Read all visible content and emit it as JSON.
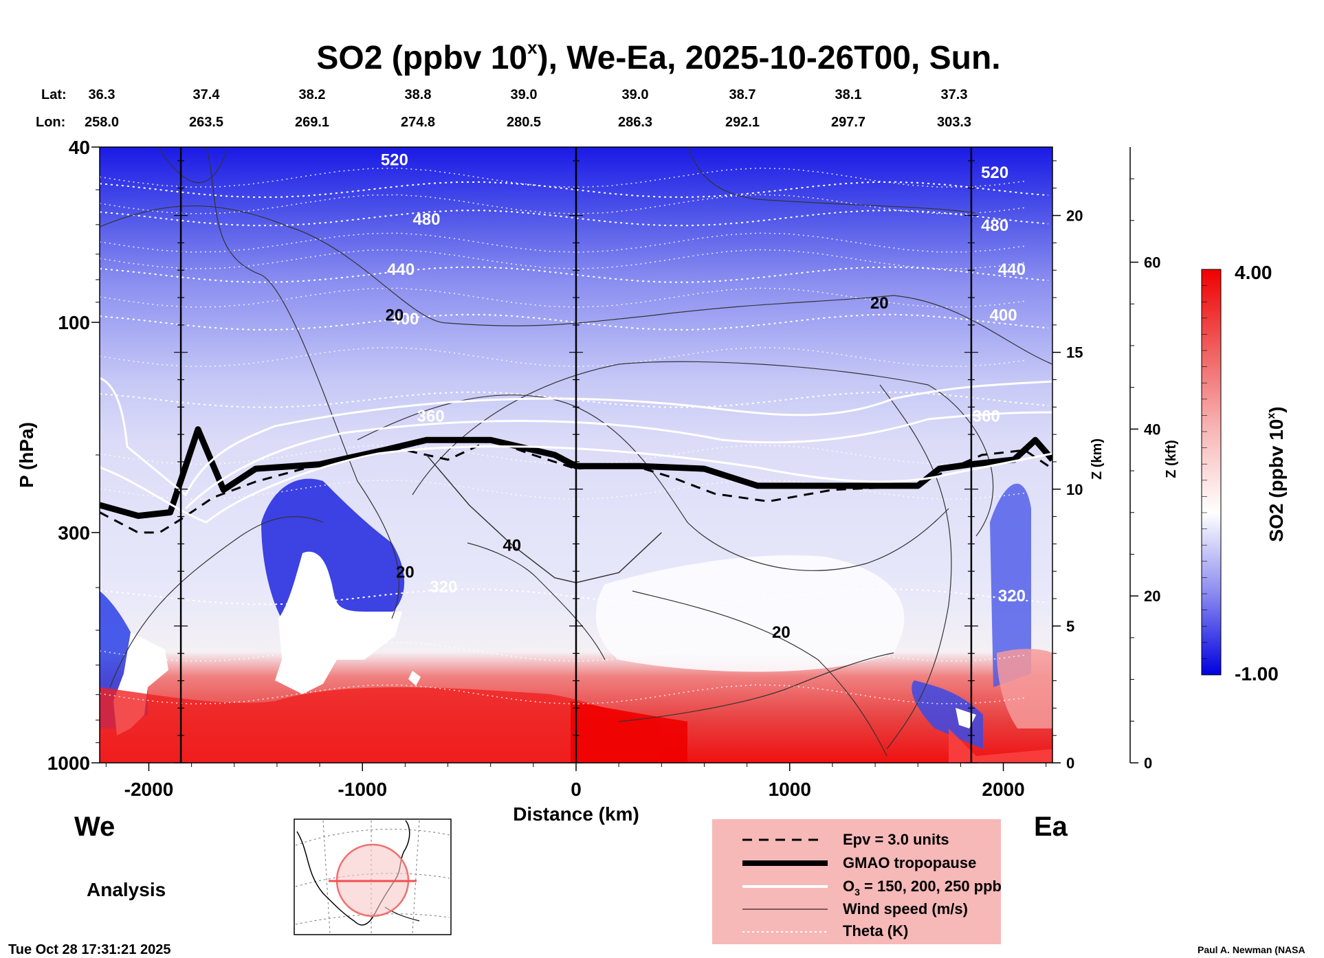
{
  "chart_data": {
    "type": "heatmap",
    "title": "SO2 (ppbv 10",
    "title_sup": "x",
    "title_rest": "), We-Ea, 2025-10-26T00, Sun.",
    "lat_label": "Lat:",
    "lon_label": "Lon:",
    "lats": [
      "36.3",
      "37.4",
      "38.2",
      "38.8",
      "39.0",
      "39.0",
      "38.7",
      "38.1",
      "37.3"
    ],
    "lons": [
      "258.0",
      "263.5",
      "269.1",
      "274.8",
      "280.5",
      "286.3",
      "292.1",
      "297.7",
      "303.3"
    ],
    "xlabel": "Distance (km)",
    "xlim": [
      -2230,
      2230
    ],
    "xticks": [
      -2000,
      -1000,
      0,
      1000,
      2000
    ],
    "xtick_labels": [
      "-2000",
      "-1000",
      "0",
      "1000",
      "2000"
    ],
    "ylabel": "P (hPa)",
    "ylim": [
      1000,
      40
    ],
    "yticks": [
      40,
      100,
      300,
      1000
    ],
    "ytick_labels": [
      "40",
      "100",
      "300",
      "1000"
    ],
    "z_km_label": "Z (km)",
    "z_km_ticks": [
      0,
      5,
      10,
      15,
      20
    ],
    "z_km_labels": [
      "0",
      "5",
      "10",
      "15",
      "20"
    ],
    "z_kft_label": "Z (kft)",
    "z_kft_ticks": [
      0,
      20,
      40,
      60
    ],
    "z_kft_labels": [
      "0",
      "20",
      "40",
      "60"
    ],
    "vertical_lines_km": [
      -1850,
      0,
      1850
    ],
    "colorbar": {
      "label": "SO2 (ppbv 10",
      "label_sup": "x",
      "label_rest": ")",
      "min": -1.0,
      "max": 4.0,
      "min_label": "-1.00",
      "max_label": "4.00"
    },
    "series": [
      {
        "name": "GMAO tropopause (hPa)",
        "x": [
          -2230,
          -2050,
          -1900,
          -1770,
          -1650,
          -1500,
          -1200,
          -900,
          -700,
          -400,
          -100,
          0,
          300,
          600,
          850,
          1100,
          1400,
          1600,
          1700,
          1850,
          2050,
          2150,
          2230
        ],
        "y": [
          260,
          275,
          270,
          175,
          240,
          215,
          210,
          195,
          185,
          185,
          200,
          212,
          212,
          215,
          235,
          235,
          235,
          235,
          215,
          210,
          205,
          185,
          205
        ]
      },
      {
        "name": "Epv = 3.0 units (hPa)",
        "x": [
          -2230,
          -2050,
          -1950,
          -1850,
          -1700,
          -1500,
          -1200,
          -1000,
          -800,
          -600,
          -400,
          -200,
          0,
          250,
          450,
          650,
          900,
          1200,
          1600,
          1750,
          1900,
          2100,
          2230
        ],
        "y": [
          270,
          300,
          300,
          280,
          250,
          230,
          210,
          200,
          195,
          205,
          185,
          200,
          215,
          210,
          225,
          245,
          255,
          240,
          235,
          215,
          200,
          195,
          215
        ]
      },
      {
        "name": "Wind speed 40 m/s (hPa)",
        "x": [
          -700,
          -500,
          -300,
          -100,
          0,
          200,
          400
        ],
        "y": [
          200,
          260,
          320,
          380,
          390,
          370,
          300
        ]
      }
    ],
    "annotations": [
      {
        "text": "520",
        "x": -850,
        "y": 44
      },
      {
        "text": "480",
        "x": -700,
        "y": 60
      },
      {
        "text": "440",
        "x": -820,
        "y": 78
      },
      {
        "text": "400",
        "x": -800,
        "y": 101
      },
      {
        "text": "20",
        "x": -850,
        "y": 99
      },
      {
        "text": "360",
        "x": -680,
        "y": 168
      },
      {
        "text": "40",
        "x": -300,
        "y": 330
      },
      {
        "text": "20",
        "x": -800,
        "y": 380
      },
      {
        "text": "320",
        "x": -620,
        "y": 410
      },
      {
        "text": "20",
        "x": 1420,
        "y": 93
      },
      {
        "text": "20",
        "x": 960,
        "y": 520
      },
      {
        "text": "520",
        "x": 1960,
        "y": 47
      },
      {
        "text": "480",
        "x": 1960,
        "y": 62
      },
      {
        "text": "440",
        "x": 2040,
        "y": 78
      },
      {
        "text": "400",
        "x": 2000,
        "y": 99
      },
      {
        "text": "360",
        "x": 1920,
        "y": 168
      },
      {
        "text": "320",
        "x": 2040,
        "y": 430
      }
    ],
    "theta_levels": [
      520,
      480,
      440,
      400,
      360,
      320
    ],
    "direction_labels": {
      "west": "We",
      "east": "Ea"
    }
  },
  "footer": {
    "analysis": "Analysis",
    "timestamp": "Tue Oct 28 17:31:21 2025",
    "credit": "Paul A. Newman (NASA"
  },
  "legend": {
    "items": [
      {
        "label": "Epv = 3.0 units",
        "style": "dashed"
      },
      {
        "label": "GMAO tropopause",
        "style": "thick"
      },
      {
        "label": "O",
        "sub": "3",
        "label_rest": " = 150, 200, 250 ppb",
        "style": "white"
      },
      {
        "label": "Wind speed (m/s)",
        "style": "thin"
      },
      {
        "label": "Theta (K)",
        "style": "dotted"
      }
    ]
  }
}
